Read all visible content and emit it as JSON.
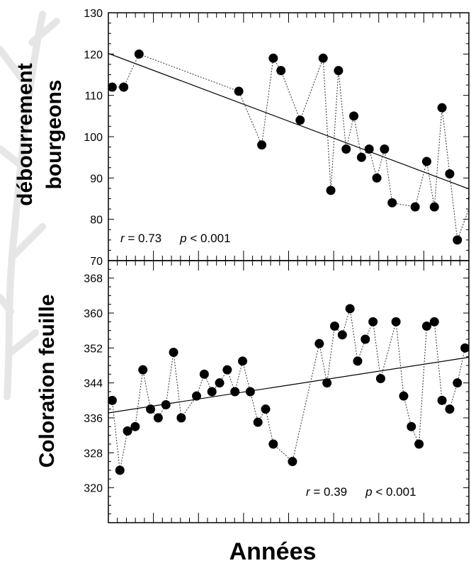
{
  "chart_data": [
    {
      "type": "scatter",
      "title": "",
      "ylabel": "débourrement bourgeons",
      "ylabel_lines": [
        "débourrement",
        "bourgeons"
      ],
      "xlabel": "",
      "ylim": [
        70,
        130
      ],
      "yticks": [
        70,
        80,
        90,
        100,
        110,
        120,
        130
      ],
      "x_index_range": [
        0,
        45
      ],
      "annotation": {
        "r_label": "r",
        "r_text": " = 0.73",
        "p_label": "p",
        "p_text": " < 0.001"
      },
      "points": [
        {
          "x": 0.5,
          "y": 112
        },
        {
          "x": 2,
          "y": 112
        },
        {
          "x": 4,
          "y": 120
        },
        {
          "x": 17,
          "y": 111
        },
        {
          "x": 20,
          "y": 98
        },
        {
          "x": 21.5,
          "y": 119
        },
        {
          "x": 22.5,
          "y": 116
        },
        {
          "x": 25,
          "y": 104
        },
        {
          "x": 28,
          "y": 119
        },
        {
          "x": 29,
          "y": 87
        },
        {
          "x": 30,
          "y": 116
        },
        {
          "x": 31,
          "y": 97
        },
        {
          "x": 32,
          "y": 105
        },
        {
          "x": 33,
          "y": 95
        },
        {
          "x": 34,
          "y": 97
        },
        {
          "x": 35,
          "y": 90
        },
        {
          "x": 36,
          "y": 97
        },
        {
          "x": 37,
          "y": 84
        },
        {
          "x": 40,
          "y": 83
        },
        {
          "x": 41.5,
          "y": 94
        },
        {
          "x": 42.5,
          "y": 83
        },
        {
          "x": 43.5,
          "y": 107
        },
        {
          "x": 44.5,
          "y": 91
        },
        {
          "x": 45.5,
          "y": 75
        },
        {
          "x": 47.5,
          "y": 85
        }
      ],
      "trend": {
        "x0": -0.5,
        "y0": 120.5,
        "x1": 47.5,
        "y1": 87
      }
    },
    {
      "type": "scatter",
      "title": "",
      "ylabel": "Coloration feuille",
      "xlabel": "Années",
      "ylim": [
        312,
        372
      ],
      "yticks": [
        320,
        328,
        336,
        344,
        352,
        360,
        368
      ],
      "x_index_range": [
        0,
        45
      ],
      "annotation": {
        "r_label": "r",
        "r_text": " = 0.39",
        "p_label": "p",
        "p_text": " < 0.001"
      },
      "points": [
        {
          "x": 0.5,
          "y": 340
        },
        {
          "x": 1.5,
          "y": 324
        },
        {
          "x": 2.5,
          "y": 333
        },
        {
          "x": 3.5,
          "y": 334
        },
        {
          "x": 4.5,
          "y": 347
        },
        {
          "x": 5.5,
          "y": 338
        },
        {
          "x": 6.5,
          "y": 336
        },
        {
          "x": 7.5,
          "y": 339
        },
        {
          "x": 8.5,
          "y": 351
        },
        {
          "x": 9.5,
          "y": 336
        },
        {
          "x": 11.5,
          "y": 341
        },
        {
          "x": 12.5,
          "y": 346
        },
        {
          "x": 13.5,
          "y": 342
        },
        {
          "x": 14.5,
          "y": 344
        },
        {
          "x": 15.5,
          "y": 347
        },
        {
          "x": 16.5,
          "y": 342
        },
        {
          "x": 17.5,
          "y": 349
        },
        {
          "x": 18.5,
          "y": 342
        },
        {
          "x": 19.5,
          "y": 335
        },
        {
          "x": 20.5,
          "y": 338
        },
        {
          "x": 21.5,
          "y": 330
        },
        {
          "x": 24,
          "y": 326
        },
        {
          "x": 27.5,
          "y": 353
        },
        {
          "x": 28.5,
          "y": 344
        },
        {
          "x": 29.5,
          "y": 357
        },
        {
          "x": 30.5,
          "y": 355
        },
        {
          "x": 31.5,
          "y": 361
        },
        {
          "x": 32.5,
          "y": 349
        },
        {
          "x": 33.5,
          "y": 354
        },
        {
          "x": 34.5,
          "y": 358
        },
        {
          "x": 35.5,
          "y": 345
        },
        {
          "x": 37.5,
          "y": 358
        },
        {
          "x": 38.5,
          "y": 341
        },
        {
          "x": 39.5,
          "y": 334
        },
        {
          "x": 40.5,
          "y": 330
        },
        {
          "x": 41.5,
          "y": 357
        },
        {
          "x": 42.5,
          "y": 358
        },
        {
          "x": 43.5,
          "y": 340
        },
        {
          "x": 44.5,
          "y": 338
        },
        {
          "x": 45.5,
          "y": 344
        },
        {
          "x": 46.5,
          "y": 352
        }
      ],
      "trend": {
        "x0": -0.5,
        "y0": 337,
        "x1": 47.5,
        "y1": 350
      }
    }
  ]
}
